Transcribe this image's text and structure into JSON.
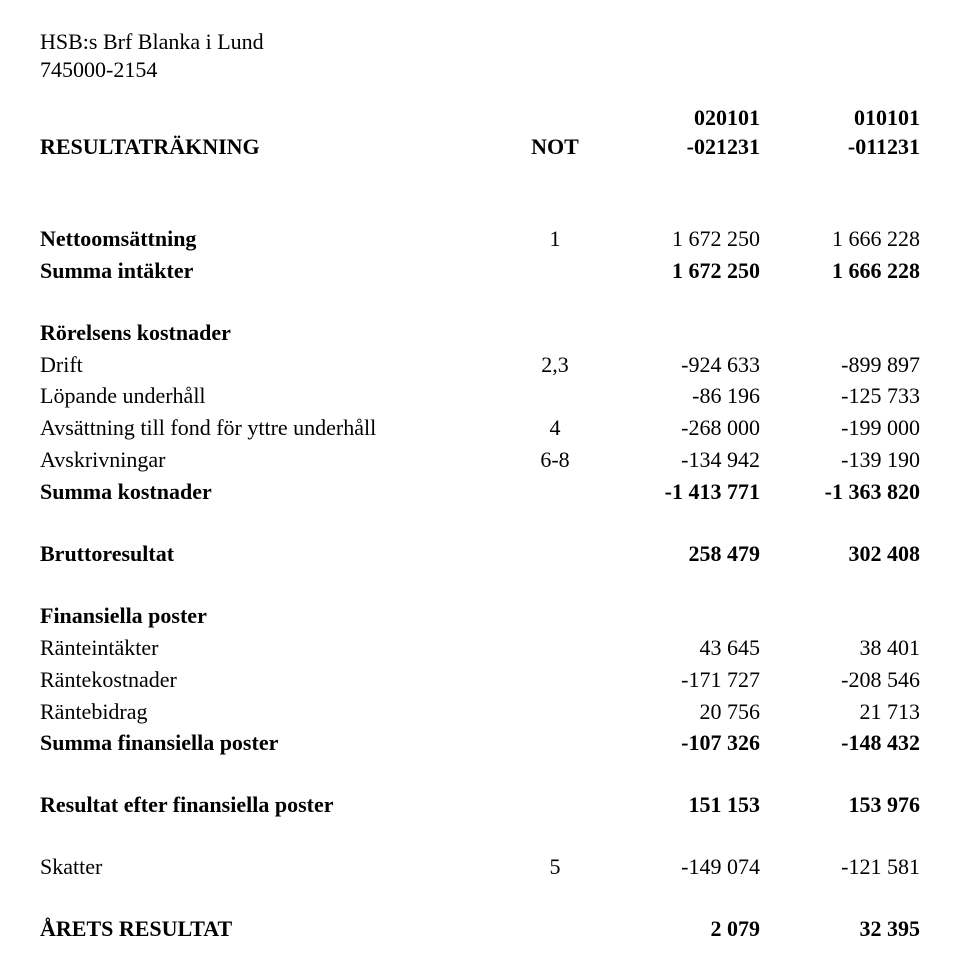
{
  "header": {
    "org_name": "HSB:s Brf Blanka i Lund",
    "org_no": "745000-2154"
  },
  "table_header": {
    "title": "RESULTATRÄKNING",
    "note_label": "NOT",
    "col1_top": "020101",
    "col1_bottom": "-021231",
    "col2_top": "010101",
    "col2_bottom": "-011231"
  },
  "rows": {
    "nettooms": {
      "label": "Nettoomsättning",
      "note": "1",
      "v1": "1 672 250",
      "v2": "1 666 228"
    },
    "summa_intakter": {
      "label": "Summa intäkter",
      "note": "",
      "v1": "1 672 250",
      "v2": "1 666 228"
    },
    "rorelsens": {
      "label": "Rörelsens kostnader"
    },
    "drift": {
      "label": "Drift",
      "note": "2,3",
      "v1": "-924 633",
      "v2": "-899 897"
    },
    "lopande": {
      "label": "Löpande underhåll",
      "note": "",
      "v1": "-86 196",
      "v2": "-125 733"
    },
    "avsattning": {
      "label": "Avsättning till fond för yttre underhåll",
      "note": "4",
      "v1": "-268 000",
      "v2": "-199 000"
    },
    "avskriv": {
      "label": "Avskrivningar",
      "note": "6-8",
      "v1": "-134 942",
      "v2": "-139 190"
    },
    "summa_kostnader": {
      "label": "Summa kostnader",
      "note": "",
      "v1": "-1 413 771",
      "v2": "-1 363 820"
    },
    "brutto": {
      "label": "Bruttoresultat",
      "note": "",
      "v1": "258 479",
      "v2": "302 408"
    },
    "fin_poster": {
      "label": "Finansiella poster"
    },
    "ranteint": {
      "label": "Ränteintäkter",
      "note": "",
      "v1": "43 645",
      "v2": "38 401"
    },
    "rantekost": {
      "label": "Räntekostnader",
      "note": "",
      "v1": "-171 727",
      "v2": "-208 546"
    },
    "rantebid": {
      "label": "Räntebidrag",
      "note": "",
      "v1": "20 756",
      "v2": "21 713"
    },
    "summa_fin": {
      "label": "Summa finansiella poster",
      "note": "",
      "v1": "-107 326",
      "v2": "-148 432"
    },
    "resultat_efter": {
      "label": "Resultat efter finansiella poster",
      "note": "",
      "v1": "151 153",
      "v2": "153 976"
    },
    "skatter": {
      "label": "Skatter",
      "note": "5",
      "v1": "-149 074",
      "v2": "-121 581"
    },
    "arets": {
      "label": "ÅRETS RESULTAT",
      "note": "",
      "v1": "2 079",
      "v2": "32 395"
    }
  }
}
